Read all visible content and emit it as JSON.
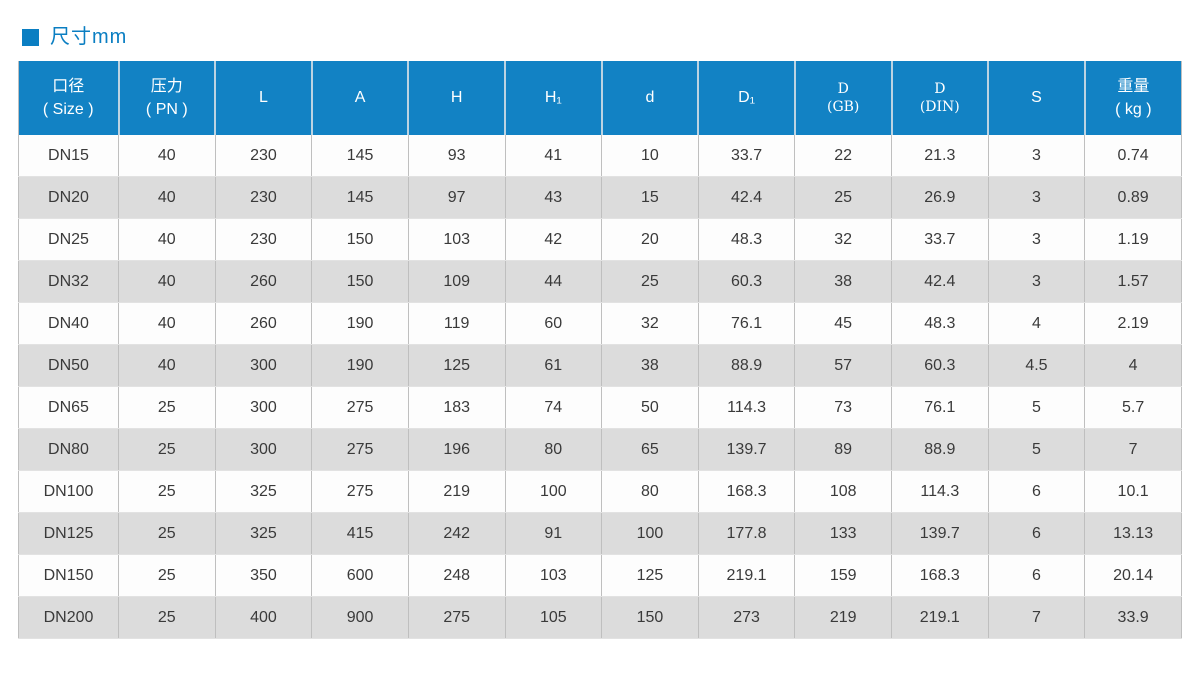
{
  "title": "尺寸mm",
  "colors": {
    "header_bg": "#1282c4",
    "title_blue": "#0a7ec2",
    "stripe_gray": "#dcdcdc",
    "row_white": "#fdfdfd",
    "body_text": "#3a3a3a"
  },
  "table": {
    "columns": [
      "口径\n( Size )",
      "压力\n( PN )",
      "L",
      "A",
      "H",
      "H₁",
      "d",
      "D₁",
      "D\n(GB)",
      "D\n(DIN)",
      "S",
      "重量\n( kg )"
    ],
    "rows": [
      [
        "DN15",
        "40",
        "230",
        "145",
        "93",
        "41",
        "10",
        "33.7",
        "22",
        "21.3",
        "3",
        "0.74"
      ],
      [
        "DN20",
        "40",
        "230",
        "145",
        "97",
        "43",
        "15",
        "42.4",
        "25",
        "26.9",
        "3",
        "0.89"
      ],
      [
        "DN25",
        "40",
        "230",
        "150",
        "103",
        "42",
        "20",
        "48.3",
        "32",
        "33.7",
        "3",
        "1.19"
      ],
      [
        "DN32",
        "40",
        "260",
        "150",
        "109",
        "44",
        "25",
        "60.3",
        "38",
        "42.4",
        "3",
        "1.57"
      ],
      [
        "DN40",
        "40",
        "260",
        "190",
        "119",
        "60",
        "32",
        "76.1",
        "45",
        "48.3",
        "4",
        "2.19"
      ],
      [
        "DN50",
        "40",
        "300",
        "190",
        "125",
        "61",
        "38",
        "88.9",
        "57",
        "60.3",
        "4.5",
        "4"
      ],
      [
        "DN65",
        "25",
        "300",
        "275",
        "183",
        "74",
        "50",
        "114.3",
        "73",
        "76.1",
        "5",
        "5.7"
      ],
      [
        "DN80",
        "25",
        "300",
        "275",
        "196",
        "80",
        "65",
        "139.7",
        "89",
        "88.9",
        "5",
        "7"
      ],
      [
        "DN100",
        "25",
        "325",
        "275",
        "219",
        "100",
        "80",
        "168.3",
        "108",
        "114.3",
        "6",
        "10.1"
      ],
      [
        "DN125",
        "25",
        "325",
        "415",
        "242",
        "91",
        "100",
        "177.8",
        "133",
        "139.7",
        "6",
        "13.13"
      ],
      [
        "DN150",
        "25",
        "350",
        "600",
        "248",
        "103",
        "125",
        "219.1",
        "159",
        "168.3",
        "6",
        "20.14"
      ],
      [
        "DN200",
        "25",
        "400",
        "900",
        "275",
        "105",
        "150",
        "273",
        "219",
        "219.1",
        "7",
        "33.9"
      ]
    ]
  }
}
